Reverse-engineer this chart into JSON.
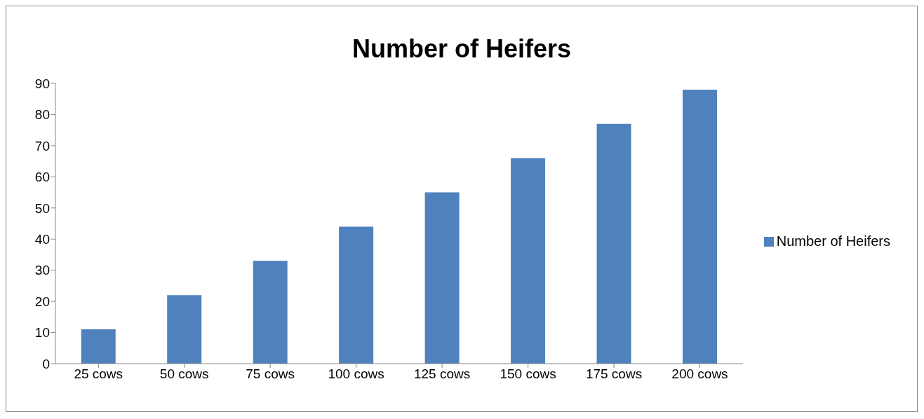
{
  "chart_data": {
    "type": "bar",
    "title": "Number of Heifers",
    "categories": [
      "25 cows",
      "50 cows",
      "75 cows",
      "100 cows",
      "125 cows",
      "150 cows",
      "175 cows",
      "200 cows"
    ],
    "series": [
      {
        "name": "Number of Heifers",
        "color": "#4f81bd",
        "values": [
          11,
          22,
          33,
          44,
          55,
          66,
          77,
          88
        ]
      }
    ],
    "ylim": [
      0,
      90
    ],
    "yticks": [
      0,
      10,
      20,
      30,
      40,
      50,
      60,
      70,
      80,
      90
    ],
    "grid": false,
    "legend": "right"
  }
}
